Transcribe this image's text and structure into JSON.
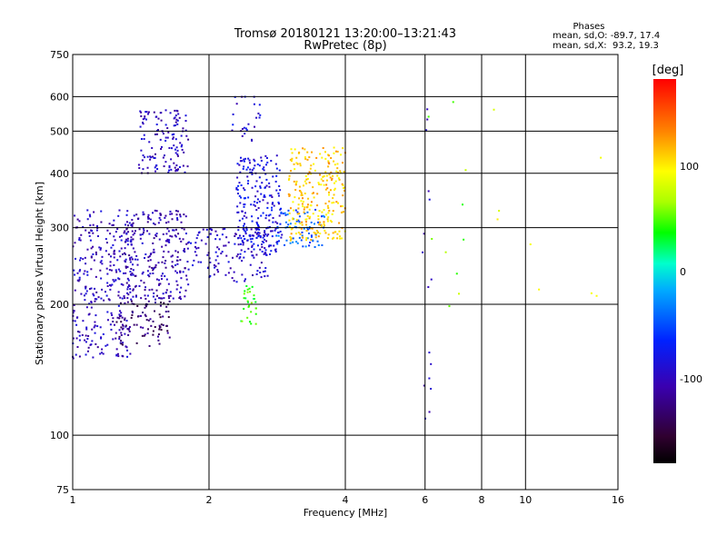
{
  "chart_data": {
    "type": "scatter",
    "title": "Tromsø 20180121 13:20:00–13:21:43",
    "subtitle": "RwPretec (8p)",
    "xlabel": "Frequency [MHz]",
    "ylabel": "Stationary phase Virtual Height [km]",
    "x_scale": "log",
    "y_scale": "log",
    "xlim": [
      1,
      16
    ],
    "ylim": [
      75,
      750
    ],
    "x_ticks": [
      1,
      2,
      4,
      6,
      8,
      10,
      16
    ],
    "x_tick_labels": [
      "1",
      "2",
      "4",
      "6",
      "8",
      "10",
      "16"
    ],
    "y_ticks": [
      75,
      100,
      200,
      300,
      400,
      500,
      600,
      750
    ],
    "y_tick_labels": [
      "75",
      "100",
      "200",
      "300",
      "400",
      "500",
      "600",
      "750"
    ],
    "grid": true,
    "phases": {
      "heading": "Phases",
      "line_o": "mean, sd,O: -89.7, 17.4",
      "line_x": "mean, sd,X:  93.2, 19.3"
    },
    "colorbar": {
      "label": "[deg]",
      "range": [
        -180,
        180
      ],
      "ticks": [
        100,
        0,
        -100
      ],
      "tick_labels": [
        "100",
        "0",
        "-100"
      ]
    },
    "clusters": [
      {
        "f": [
          1.0,
          1.35
        ],
        "h": [
          150,
          330
        ],
        "phase": -100,
        "n": 300
      },
      {
        "f": [
          1.25,
          1.65
        ],
        "h": [
          160,
          205
        ],
        "phase": -130,
        "n": 90
      },
      {
        "f": [
          1.3,
          1.8
        ],
        "h": [
          205,
          330
        ],
        "phase": -105,
        "n": 260
      },
      {
        "f": [
          1.4,
          1.8
        ],
        "h": [
          400,
          560
        ],
        "phase": -100,
        "n": 130
      },
      {
        "f": [
          1.8,
          2.7
        ],
        "h": [
          225,
          300
        ],
        "phase": -95,
        "n": 140
      },
      {
        "f": [
          2.3,
          2.9
        ],
        "h": [
          260,
          440
        ],
        "phase": -85,
        "n": 220
      },
      {
        "f": [
          2.2,
          2.6
        ],
        "h": [
          475,
          600
        ],
        "phase": -90,
        "n": 25
      },
      {
        "f": [
          2.8,
          3.6
        ],
        "h": [
          270,
          330
        ],
        "phase": -45,
        "n": 70
      },
      {
        "f": [
          3.0,
          4.0
        ],
        "h": [
          280,
          460
        ],
        "phase": 110,
        "n": 260
      },
      {
        "f": [
          2.35,
          2.55
        ],
        "h": [
          180,
          225
        ],
        "phase": 40,
        "n": 30
      },
      {
        "f": [
          5.9,
          6.2
        ],
        "h": [
          100,
          640
        ],
        "phase": -100,
        "n": 16
      },
      {
        "f": [
          6.1,
          7.5
        ],
        "h": [
          190,
          650
        ],
        "phase": 60,
        "n": 10
      },
      {
        "f": [
          8.5,
          15.2
        ],
        "h": [
          200,
          590
        ],
        "phase": 80,
        "n": 8
      }
    ]
  }
}
